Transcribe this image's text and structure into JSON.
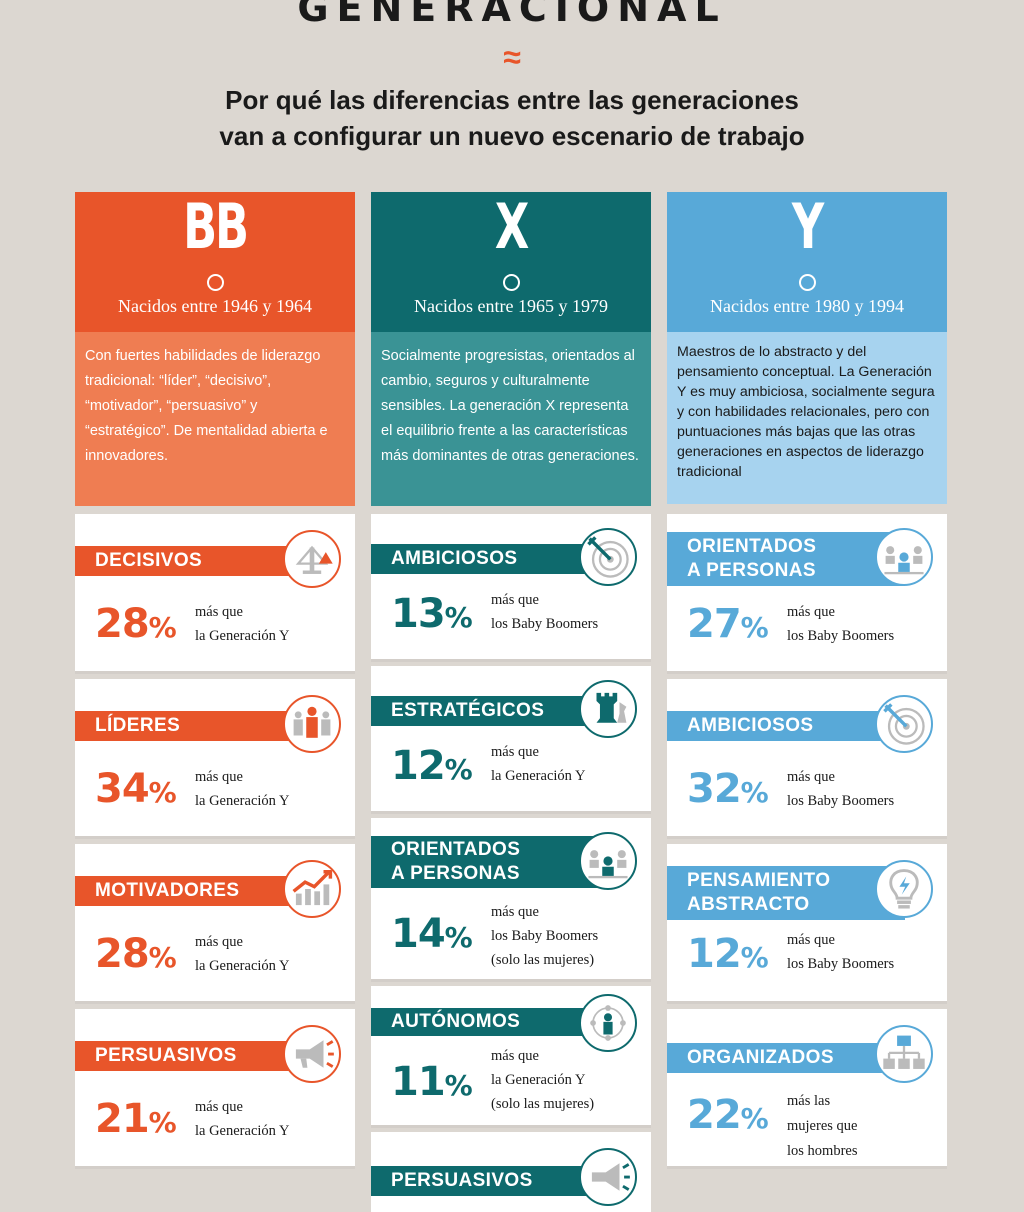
{
  "header": {
    "title": "GENERACIONAL",
    "wave": "≈",
    "subtitle_1": "Por qué las diferencias entre las generaciones",
    "subtitle_2": "van a configurar un nuevo escenario de trabajo"
  },
  "colors": {
    "bb": "#e8552a",
    "x": "#0e6a6d",
    "y": "#58a9d8"
  },
  "columns": [
    {
      "letter": "BB",
      "born": "Nacidos entre 1946 y 1964",
      "description": "Con fuertes habilidades de liderazgo tradicional: “líder”, “decisivo”, “motivador”, “persuasivo” y “estratégico”. De mentalidad abierta e innovadores.",
      "cards": [
        {
          "title": "DECISIVOS",
          "value": "28",
          "unit": "%",
          "line1": "más que",
          "line2": "la Generación Y",
          "icon": "scale-icon"
        },
        {
          "title": "LÍDERES",
          "value": "34",
          "unit": "%",
          "line1": "más que",
          "line2": "la Generación Y",
          "icon": "leader-group-icon"
        },
        {
          "title": "MOTIVADORES",
          "value": "28",
          "unit": "%",
          "line1": "más que",
          "line2": "la Generación Y",
          "icon": "growth-chart-icon"
        },
        {
          "title": "PERSUASIVOS",
          "value": "21",
          "unit": "%",
          "line1": "más que",
          "line2": "la Generación Y",
          "icon": "megaphone-icon"
        }
      ]
    },
    {
      "letter": "X",
      "born": "Nacidos entre 1965 y 1979",
      "description": "Socialmente progresistas, orientados al cambio, seguros y culturalmente sensibles. La generación X representa el equilibrio frente a las características más dominantes de otras generaciones.",
      "cards": [
        {
          "title": "AMBICIOSOS",
          "value": "13",
          "unit": "%",
          "line1": "más que",
          "line2": "los Baby Boomers",
          "icon": "target-icon"
        },
        {
          "title": "ESTRATÉGICOS",
          "value": "12",
          "unit": "%",
          "line1": "más que",
          "line2": "la Generación Y",
          "icon": "chess-icon"
        },
        {
          "title_1": "ORIENTADOS",
          "title_2": "A PERSONAS",
          "value": "14",
          "unit": "%",
          "line1": "más que",
          "line2": "los Baby Boomers",
          "line3": "(solo las mujeres)",
          "icon": "people-icon"
        },
        {
          "title": "AUTÓNOMOS",
          "value": "11",
          "unit": "%",
          "line1": "más que",
          "line2": "la Generación Y",
          "line3": "(solo las mujeres)",
          "icon": "network-person-icon"
        },
        {
          "title": "PERSUASIVOS",
          "icon": "megaphone-icon"
        }
      ]
    },
    {
      "letter": "Y",
      "born": "Nacidos entre 1980 y 1994",
      "description": "Maestros de lo abstracto y del pensamiento conceptual. La Generación Y es muy ambiciosa, socialmente segura y con habilidades relacionales, pero  con puntuaciones más bajas que las otras generaciones en aspectos de liderazgo tradicional",
      "cards": [
        {
          "title_1": "ORIENTADOS",
          "title_2": "A PERSONAS",
          "value": "27",
          "unit": "%",
          "line1": "más que",
          "line2": "los Baby Boomers",
          "icon": "people-icon"
        },
        {
          "title": "AMBICIOSOS",
          "value": "32",
          "unit": "%",
          "line1": "más que",
          "line2": "los Baby Boomers",
          "icon": "target-icon"
        },
        {
          "title_1": "PENSAMIENTO",
          "title_2": "ABSTRACTO",
          "value": "12",
          "unit": "%",
          "line1": "más que",
          "line2": "los Baby Boomers",
          "icon": "lightbulb-icon"
        },
        {
          "title": "ORGANIZADOS",
          "value": "22",
          "unit": "%",
          "line1": "más las",
          "line2": "mujeres que",
          "line3": "los hombres",
          "icon": "org-chart-icon"
        }
      ]
    }
  ]
}
